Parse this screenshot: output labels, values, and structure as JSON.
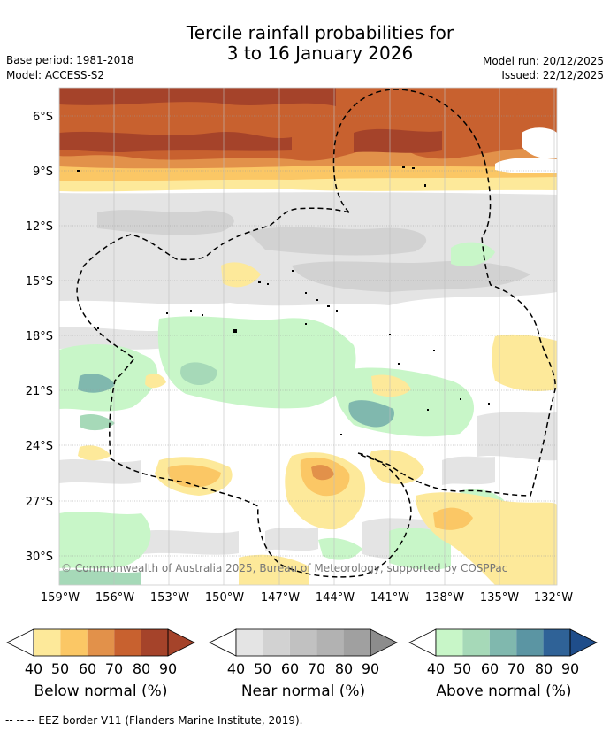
{
  "header": {
    "title_line1": "Tercile rainfall probabilities for",
    "title_line2": "3 to 16 January 2026",
    "base_period": "Base period: 1981-2018",
    "model": "Model: ACCESS-S2",
    "model_run": "Model run: 20/12/2025",
    "issued": "Issued: 22/12/2025"
  },
  "map": {
    "lat_labels": [
      "6°S",
      "9°S",
      "12°S",
      "15°S",
      "18°S",
      "21°S",
      "24°S",
      "27°S",
      "30°S"
    ],
    "lon_labels": [
      "159°W",
      "156°W",
      "153°W",
      "150°W",
      "147°W",
      "144°W",
      "141°W",
      "138°W",
      "135°W",
      "132°W"
    ],
    "copyright": "© Commonwealth of Australia 2025, Bureau of Meteorology, supported by COSPPac"
  },
  "colorbars": [
    {
      "label": "Below normal (%)",
      "ticks": [
        "40",
        "50",
        "60",
        "70",
        "80",
        "90"
      ],
      "colors": [
        "#fde99a",
        "#fbc765",
        "#e2914a",
        "#c8612f",
        "#a5432a",
        "#a5432a"
      ]
    },
    {
      "label": "Near normal (%)",
      "ticks": [
        "40",
        "50",
        "60",
        "70",
        "80",
        "90"
      ],
      "colors": [
        "#e4e4e4",
        "#d2d2d2",
        "#c1c1c1",
        "#b2b2b2",
        "#a0a0a0",
        "#8c8c8c"
      ]
    },
    {
      "label": "Above normal (%)",
      "ticks": [
        "40",
        "50",
        "60",
        "70",
        "80",
        "90"
      ],
      "colors": [
        "#c8f6c8",
        "#a6d9b8",
        "#80b8ae",
        "#5b95a3",
        "#2f6297",
        "#1f4d8a"
      ]
    }
  ],
  "footer": "--  --  -- EEZ border V11 (Flanders Marine Institute, 2019)."
}
